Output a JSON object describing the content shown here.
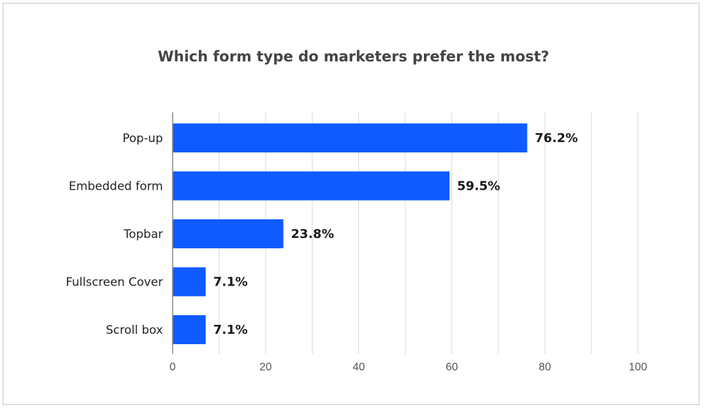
{
  "chart_data": {
    "type": "bar",
    "orientation": "horizontal",
    "title": "Which form type do marketers prefer the most?",
    "categories": [
      "Pop-up",
      "Embedded form",
      "Topbar",
      "Fullscreen Cover",
      "Scroll box"
    ],
    "values": [
      76.2,
      59.5,
      23.8,
      7.1,
      7.1
    ],
    "value_labels": [
      "76.2%",
      "59.5%",
      "23.8%",
      "7.1%",
      "7.1%"
    ],
    "xticks": [
      0,
      20,
      40,
      60,
      80,
      100
    ],
    "xlim": [
      0,
      100
    ],
    "xlabel": "",
    "ylabel": "",
    "grid": true,
    "bar_color": "#0f5bff",
    "grid_color": "#d9d9d9",
    "axis_color": "#888888"
  }
}
